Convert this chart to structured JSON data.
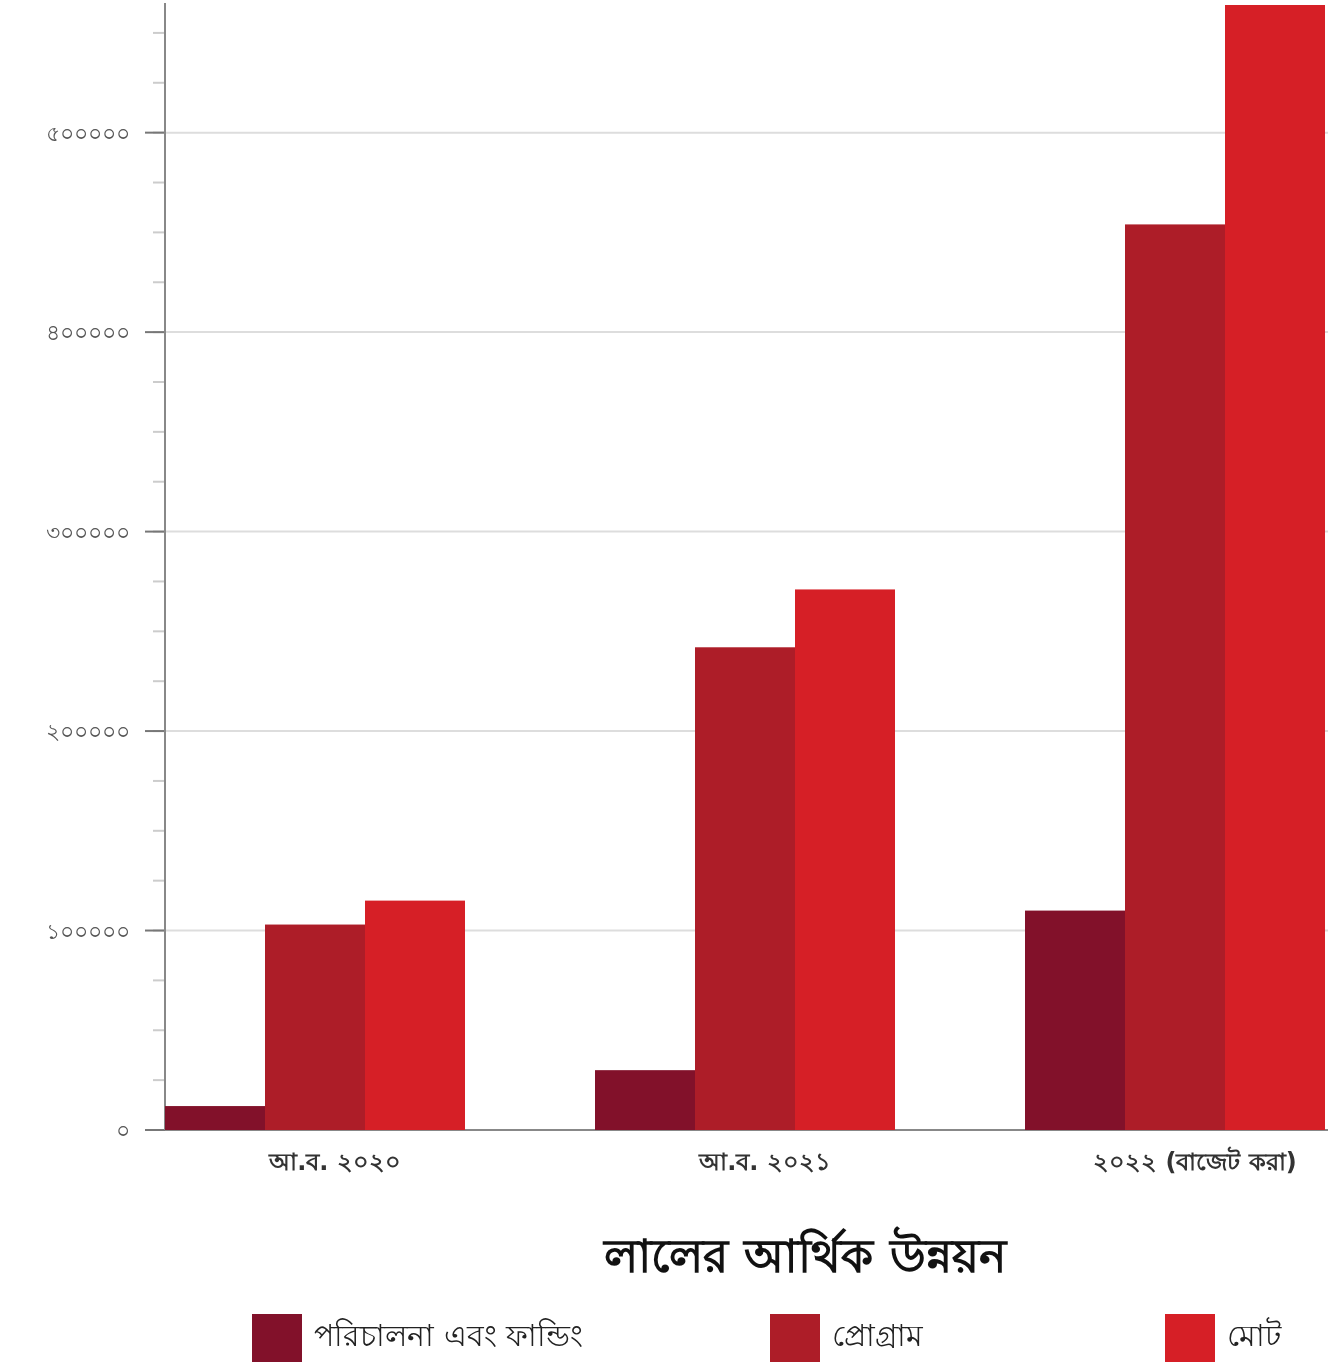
{
  "chart_data": {
    "type": "bar",
    "title": "লালের আর্থিক উন্নয়ন",
    "categories": [
      "আ.ব. ২০২০",
      "আ.ব. ২০২১",
      "২০২২ (বাজেট করা)"
    ],
    "series": [
      {
        "name": "পরিচালনা এবং ফান্ডিং",
        "color": "#82112a",
        "values": [
          12000,
          30000,
          110000
        ]
      },
      {
        "name": "প্রোগ্রাম",
        "color": "#ad1d28",
        "values": [
          103000,
          242000,
          454000
        ]
      },
      {
        "name": "মোট",
        "color": "#d61f26",
        "values": [
          115000,
          271000,
          564000
        ]
      }
    ],
    "ylim": [
      0,
      565000
    ],
    "yticks": [
      {
        "value": 0,
        "label": "০"
      },
      {
        "value": 100000,
        "label": "১০০০০০"
      },
      {
        "value": 200000,
        "label": "২০০০০০"
      },
      {
        "value": 300000,
        "label": "৩০০০০০"
      },
      {
        "value": 400000,
        "label": "৪০০০০০"
      },
      {
        "value": 500000,
        "label": "৫০০০০০"
      }
    ],
    "grid": true,
    "legend": "bottom"
  }
}
